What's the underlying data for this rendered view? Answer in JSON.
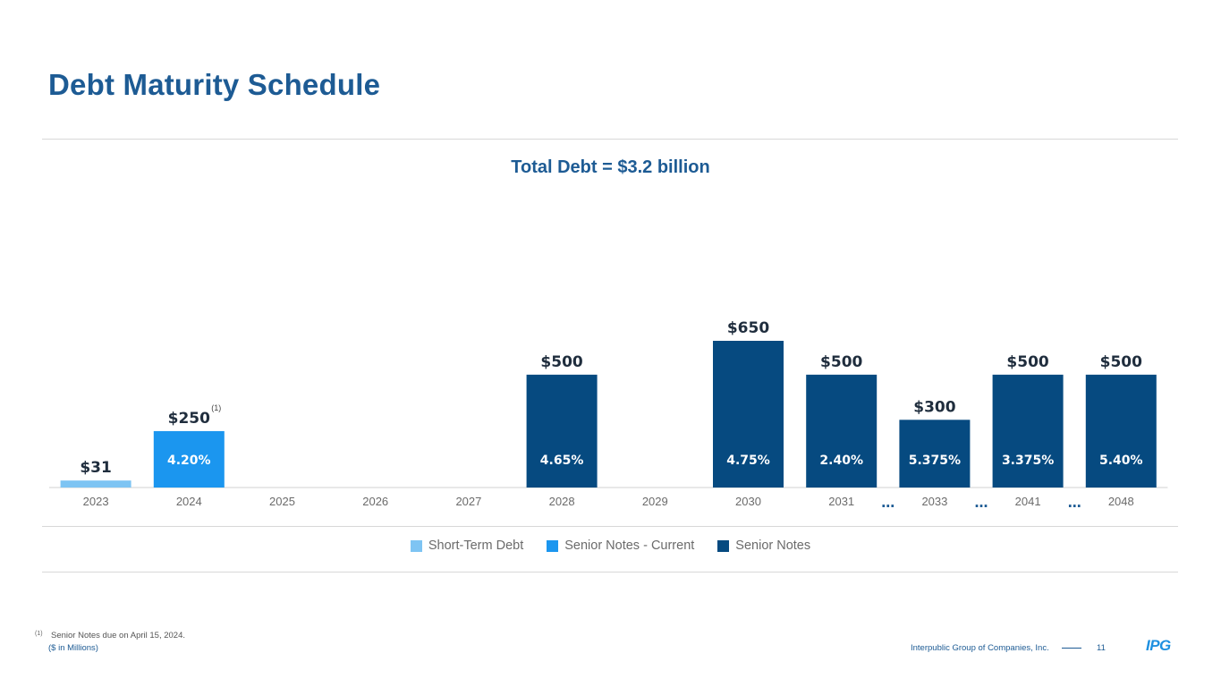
{
  "header": {
    "title": "Debt Maturity Schedule"
  },
  "chart_data": {
    "type": "bar",
    "title": "Total Debt = $3.2 billion",
    "units": "($ in Millions)",
    "categories": [
      "2023",
      "2024",
      "2025",
      "2026",
      "2027",
      "2028",
      "2029",
      "2030",
      "2031",
      "2033",
      "2041",
      "2048"
    ],
    "values": [
      31,
      250,
      0,
      0,
      0,
      500,
      0,
      650,
      500,
      300,
      500,
      500
    ],
    "value_labels": [
      "$31",
      "$250",
      "",
      "",
      "",
      "$500",
      "",
      "$650",
      "$500",
      "$300",
      "$500",
      "$500"
    ],
    "rates": [
      "",
      "4.20%",
      "",
      "",
      "",
      "4.65%",
      "",
      "4.75%",
      "2.40%",
      "5.375%",
      "3.375%",
      "5.40%"
    ],
    "bar_series": [
      "short_term",
      "current",
      "",
      "",
      "",
      "senior",
      "",
      "senior",
      "senior",
      "senior",
      "senior",
      "senior"
    ],
    "footnote_marks": [
      "",
      "(1)",
      "",
      "",
      "",
      "",
      "",
      "",
      "",
      "",
      "",
      ""
    ],
    "breaks_after": [
      "2031",
      "2033",
      "2041"
    ],
    "break_symbol": "…",
    "ylim": [
      0,
      700
    ],
    "legend_position": "bottom-center",
    "series": [
      {
        "key": "short_term",
        "name": "Short-Term Debt",
        "color": "#7ec4f3"
      },
      {
        "key": "current",
        "name": "Senior Notes - Current",
        "color": "#1b96ef"
      },
      {
        "key": "senior",
        "name": "Senior Notes",
        "color": "#064a80"
      }
    ]
  },
  "footnote": {
    "mark": "(1)",
    "text": "Senior Notes due on April 15, 2024."
  },
  "footer": {
    "units": "($ in Millions)",
    "company": "Interpublic Group of Companies, Inc.",
    "page": "11",
    "logo": "IPG"
  }
}
